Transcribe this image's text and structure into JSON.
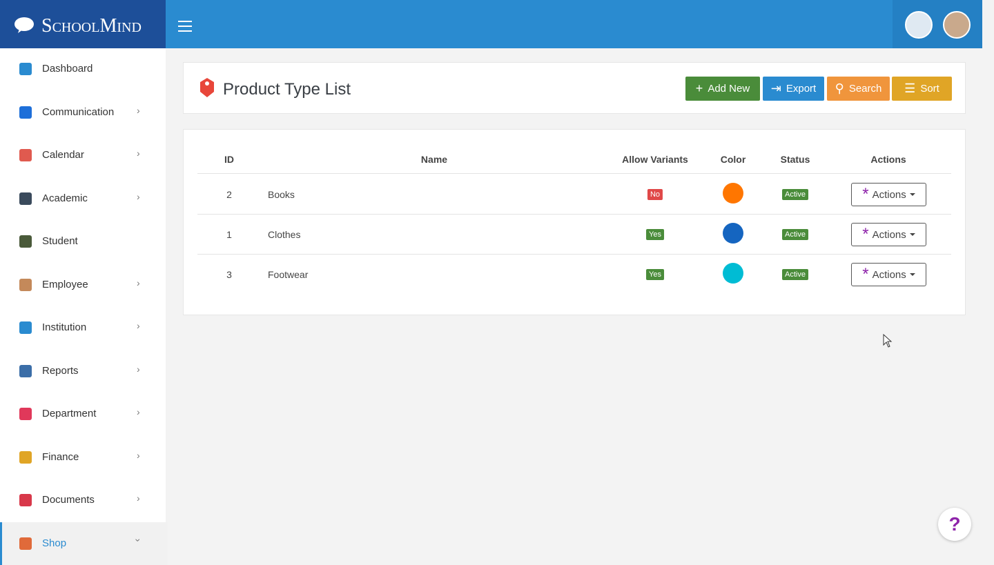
{
  "brand": "SchoolMind",
  "sidebar": {
    "items": [
      {
        "label": "Dashboard",
        "icon_color": "#2a8bd0",
        "has_submenu": false
      },
      {
        "label": "Communication",
        "icon_color": "#1e6fd9",
        "has_submenu": true
      },
      {
        "label": "Calendar",
        "icon_color": "#e05a4f",
        "has_submenu": true
      },
      {
        "label": "Academic",
        "icon_color": "#3a4a5c",
        "has_submenu": true
      },
      {
        "label": "Student",
        "icon_color": "#4a5a3a",
        "has_submenu": false
      },
      {
        "label": "Employee",
        "icon_color": "#c4895a",
        "has_submenu": true
      },
      {
        "label": "Institution",
        "icon_color": "#2a8bd0",
        "has_submenu": true
      },
      {
        "label": "Reports",
        "icon_color": "#3b6ea8",
        "has_submenu": true
      },
      {
        "label": "Department",
        "icon_color": "#e0385a",
        "has_submenu": true
      },
      {
        "label": "Finance",
        "icon_color": "#e0a526",
        "has_submenu": true
      },
      {
        "label": "Documents",
        "icon_color": "#d8384a",
        "has_submenu": true
      },
      {
        "label": "Shop",
        "icon_color": "#e06a3a",
        "has_submenu": true,
        "active": true
      }
    ]
  },
  "page": {
    "title": "Product Type List",
    "buttons": [
      {
        "label": "Add New",
        "icon": "+",
        "color": "#4a8c3a"
      },
      {
        "label": "Export",
        "icon": "⇥",
        "color": "#2a8bd0"
      },
      {
        "label": "Search",
        "icon": "⚲",
        "color": "#f0953c"
      },
      {
        "label": "Sort",
        "icon": "☰",
        "color": "#e0a526"
      }
    ]
  },
  "table": {
    "columns": [
      "ID",
      "Name",
      "Allow Variants",
      "Color",
      "Status",
      "Actions"
    ],
    "rows": [
      {
        "id": "2",
        "name": "Books",
        "allow_variants": "No",
        "color": "#ff7600",
        "status": "Active",
        "actions": "Actions"
      },
      {
        "id": "1",
        "name": "Clothes",
        "allow_variants": "Yes",
        "color": "#1565c0",
        "status": "Active",
        "actions": "Actions"
      },
      {
        "id": "3",
        "name": "Footwear",
        "allow_variants": "Yes",
        "color": "#00bcd4",
        "status": "Active",
        "actions": "Actions"
      }
    ]
  },
  "help": "?"
}
